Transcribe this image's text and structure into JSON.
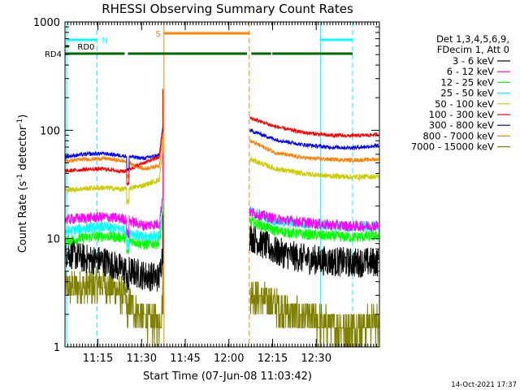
{
  "chart_data": {
    "type": "line",
    "title": "RHESSI Observing Summary Count Rates",
    "xlabel": "Start Time (07-Jun-08 11:03:42)",
    "ylabel_main": "Count Rate (s",
    "ylabel_sup1": "-1",
    "ylabel_mid": " detector",
    "ylabel_sup2": "-1",
    "ylabel_end": ")",
    "yscale": "log",
    "ylim": [
      1,
      1000
    ],
    "xlim_min": [
      0,
      108
    ],
    "x_unit": "minutes since start",
    "x_ticks": [
      {
        "t": 11.3,
        "label": "11:15"
      },
      {
        "t": 26.3,
        "label": "11:30"
      },
      {
        "t": 41.3,
        "label": "11:45"
      },
      {
        "t": 56.3,
        "label": "12:00"
      },
      {
        "t": 71.3,
        "label": "12:15"
      },
      {
        "t": 86.3,
        "label": "12:30"
      }
    ],
    "y_ticks": [
      {
        "v": 1,
        "label": "1"
      },
      {
        "v": 10,
        "label": "10"
      },
      {
        "v": 100,
        "label": "100"
      },
      {
        "v": 1000,
        "label": "1000"
      }
    ],
    "legend": {
      "position": "right",
      "header_1": "Det 1,3,4,5,6,9,",
      "header_2": "FDecim 1, Att 0"
    },
    "series": [
      {
        "name": "3 - 6 keV",
        "color": "#000000",
        "before": [
          7.5,
          6.5,
          6.2,
          5.2,
          4.6,
          4.3
        ],
        "after": [
          10.5,
          7.6,
          6.6,
          6.2,
          6.0,
          6.1
        ],
        "noise": 0.14
      },
      {
        "name": "6 - 12 keV",
        "color": "#ff00ff",
        "before": [
          15,
          15.5,
          15.8,
          15.2,
          13.2,
          13.8
        ],
        "after": [
          17.5,
          15.2,
          14.2,
          13.4,
          13.0,
          13.2
        ],
        "noise": 0.05
      },
      {
        "name": "12 - 25 keV",
        "color": "#00ff00",
        "before": [
          9.5,
          10.2,
          10.6,
          10.2,
          8.8,
          9.2
        ],
        "after": [
          14.5,
          11.8,
          11.0,
          10.6,
          10.3,
          10.6
        ],
        "noise": 0.05
      },
      {
        "name": "25 - 50 keV",
        "color": "#00ffff",
        "before": [
          11.5,
          12.5,
          12.8,
          12.2,
          10.2,
          11
        ],
        "after": [
          18,
          14.5,
          13.8,
          13.2,
          12.8,
          13.0
        ],
        "noise": 0.05
      },
      {
        "name": "50 - 100 keV",
        "color": "#cccc00",
        "before": [
          28,
          29,
          29.5,
          28.5,
          31,
          36
        ],
        "after": [
          54,
          44,
          40,
          38,
          37,
          37.5
        ],
        "noise": 0.025
      },
      {
        "name": "100 - 300 keV",
        "color": "#ff0000",
        "before": [
          42,
          43.5,
          44,
          41.5,
          50,
          58
        ],
        "after": [
          130,
          108,
          96,
          90,
          89,
          91
        ],
        "noise": 0.018
      },
      {
        "name": "300 - 800 keV",
        "color": "#0000ff",
        "before": [
          57,
          60,
          61,
          58,
          55,
          60
        ],
        "after": [
          100,
          82,
          74,
          70,
          69,
          72
        ],
        "noise": 0.018
      },
      {
        "name": "800 - 7000 keV",
        "color": "#ff8000",
        "before": [
          52,
          54,
          55,
          52,
          44,
          48
        ],
        "after": [
          80,
          62,
          56,
          54,
          53,
          54
        ],
        "noise": 0.018
      },
      {
        "name": "7000 - 15000 keV",
        "color": "#808000",
        "before": [
          3.5,
          3.6,
          3.8,
          3.0,
          1.8,
          1.6
        ],
        "after": [
          3.2,
          2.4,
          1.9,
          1.6,
          1.5,
          1.7
        ],
        "noise": 0.16
      }
    ],
    "gap": {
      "start": 34.0,
      "end": 63.3
    },
    "spike_at": 33.6,
    "spike_peak": 240,
    "attenuator_step": 21.6,
    "saa_lines": [
      {
        "t": 34.0,
        "color": "#ff8000",
        "style": "solid"
      },
      {
        "t": 63.3,
        "color": "#ff8000",
        "style": "dashed"
      },
      {
        "t": 0.6,
        "color": "#00ffff",
        "style": "solid"
      },
      {
        "t": 11.0,
        "color": "#00ffff",
        "style": "dashed"
      },
      {
        "t": 87.8,
        "color": "#00ffff",
        "style": "solid"
      },
      {
        "t": 98.8,
        "color": "#00ffff",
        "style": "dashed"
      }
    ],
    "flags": {
      "night": {
        "label": "N",
        "color": "#00ffff",
        "segments": [
          [
            0.6,
            11.0
          ],
          [
            87.8,
            98.8
          ]
        ]
      },
      "saa": {
        "label": "S",
        "color": "#ff8000",
        "segments": [
          [
            34.0,
            63.3
          ]
        ]
      },
      "rd0": {
        "label": "RD0",
        "color": "#006600",
        "segments": [
          [
            0,
            1.5
          ]
        ]
      },
      "rd4": {
        "label": "RD4",
        "color": "#006600",
        "segments": [
          [
            0,
            20.5
          ],
          [
            21.6,
            62.5
          ],
          [
            64,
            70.8
          ],
          [
            71.2,
            98.8
          ]
        ]
      }
    }
  },
  "timestamp": "14-Oct-2021 17:37"
}
